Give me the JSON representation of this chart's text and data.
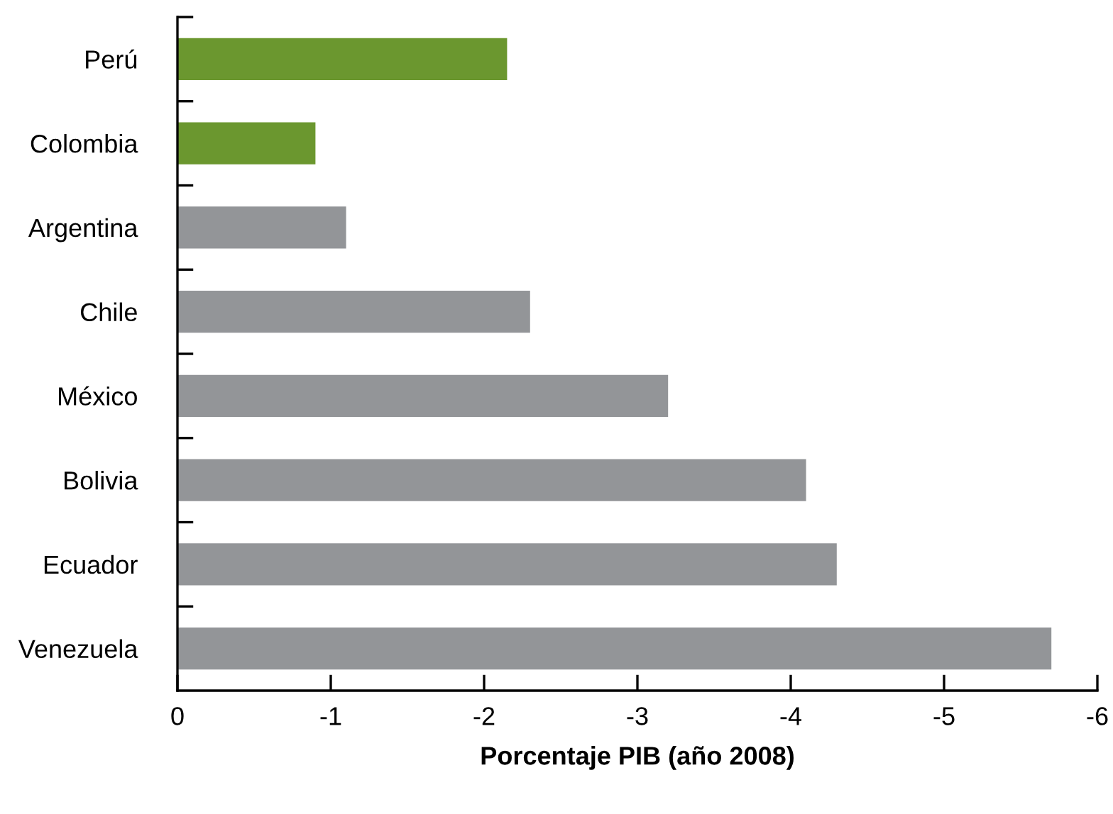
{
  "chart_data": {
    "type": "bar",
    "orientation": "horizontal",
    "xlabel": "Porcentaje PIB (año 2008)",
    "categories": [
      "Perú",
      "Colombia",
      "Argentina",
      "Chile",
      "México",
      "Bolivia",
      "Ecuador",
      "Venezuela"
    ],
    "values": [
      -2.15,
      -0.9,
      -1.1,
      -2.3,
      -3.2,
      -4.1,
      -4.3,
      -5.7
    ],
    "colors": [
      "#6b972f",
      "#6b972f",
      "#939598",
      "#939598",
      "#939598",
      "#939598",
      "#939598",
      "#939598"
    ],
    "xlim": [
      0,
      -6
    ],
    "xticks": [
      0,
      -1,
      -2,
      -3,
      -4,
      -5,
      -6
    ],
    "grid": false,
    "legend": false
  }
}
